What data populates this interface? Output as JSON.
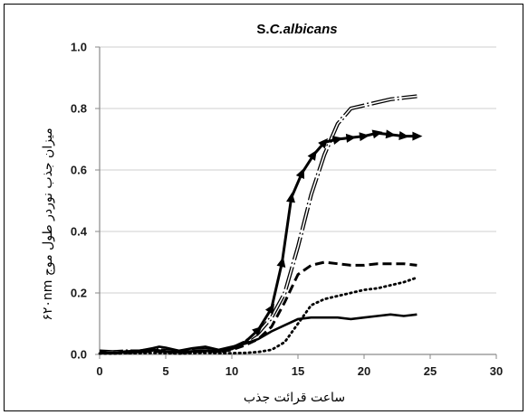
{
  "chart_data": {
    "type": "line",
    "title_prefix": "S.",
    "title_italic": "C.albicans",
    "xlabel": "ساعت قرائت جذب",
    "ylabel": "میزان جذب نوردر طول موج ۶۲۰nm",
    "xlim": [
      0,
      30
    ],
    "ylim": [
      0,
      1.0
    ],
    "xticks": [
      "0",
      "5",
      "10",
      "15",
      "20",
      "25",
      "30"
    ],
    "yticks": [
      "0.0",
      "0.2",
      "0.4",
      "0.6",
      "0.8",
      "1.0"
    ],
    "grid": "horizontal",
    "legend": "none",
    "series": [
      {
        "style": "double-dash-dot",
        "points": [
          [
            0,
            0.01
          ],
          [
            1,
            0.008
          ],
          [
            2,
            0.01
          ],
          [
            3,
            0.01
          ],
          [
            4,
            0.015
          ],
          [
            5,
            0.012
          ],
          [
            6,
            0.01
          ],
          [
            7,
            0.012
          ],
          [
            8,
            0.015
          ],
          [
            9,
            0.01
          ],
          [
            10,
            0.02
          ],
          [
            11,
            0.04
          ],
          [
            12,
            0.07
          ],
          [
            13,
            0.12
          ],
          [
            14,
            0.2
          ],
          [
            15,
            0.35
          ],
          [
            16,
            0.52
          ],
          [
            17,
            0.65
          ],
          [
            18,
            0.75
          ],
          [
            19,
            0.8
          ],
          [
            20,
            0.81
          ],
          [
            21,
            0.82
          ],
          [
            22,
            0.83
          ],
          [
            23,
            0.835
          ],
          [
            24,
            0.84
          ]
        ]
      },
      {
        "style": "solid-triangle-markers",
        "points": [
          [
            0,
            0.005
          ],
          [
            1,
            0.005
          ],
          [
            2,
            0.008
          ],
          [
            3,
            0.01
          ],
          [
            4,
            0.015
          ],
          [
            5,
            0.01
          ],
          [
            6,
            0.008
          ],
          [
            7,
            0.01
          ],
          [
            8,
            0.012
          ],
          [
            9,
            0.01
          ],
          [
            10,
            0.02
          ],
          [
            11,
            0.04
          ],
          [
            12,
            0.08
          ],
          [
            13,
            0.15
          ],
          [
            13.8,
            0.3
          ],
          [
            14.5,
            0.51
          ],
          [
            15.3,
            0.59
          ],
          [
            16.2,
            0.65
          ],
          [
            17,
            0.69
          ],
          [
            18,
            0.7
          ],
          [
            19,
            0.705
          ],
          [
            20,
            0.71
          ],
          [
            21,
            0.72
          ],
          [
            22,
            0.715
          ],
          [
            23,
            0.71
          ],
          [
            24,
            0.71
          ]
        ],
        "markers_from_index": 12
      },
      {
        "style": "dashed",
        "points": [
          [
            0,
            0.005
          ],
          [
            1,
            0.005
          ],
          [
            2,
            0.005
          ],
          [
            3,
            0.008
          ],
          [
            4,
            0.01
          ],
          [
            5,
            0.008
          ],
          [
            6,
            0.005
          ],
          [
            7,
            0.008
          ],
          [
            8,
            0.01
          ],
          [
            9,
            0.008
          ],
          [
            10,
            0.015
          ],
          [
            11,
            0.03
          ],
          [
            12,
            0.05
          ],
          [
            13,
            0.09
          ],
          [
            14,
            0.17
          ],
          [
            15,
            0.26
          ],
          [
            16,
            0.29
          ],
          [
            17,
            0.3
          ],
          [
            18,
            0.295
          ],
          [
            19,
            0.29
          ],
          [
            20,
            0.29
          ],
          [
            21,
            0.295
          ],
          [
            22,
            0.295
          ],
          [
            23,
            0.295
          ],
          [
            24,
            0.29
          ]
        ]
      },
      {
        "style": "dotted",
        "points": [
          [
            0,
            0.003
          ],
          [
            1,
            0.003
          ],
          [
            2,
            0.004
          ],
          [
            3,
            0.004
          ],
          [
            4,
            0.005
          ],
          [
            5,
            0.004
          ],
          [
            6,
            0.003
          ],
          [
            7,
            0.004
          ],
          [
            8,
            0.005
          ],
          [
            9,
            0.004
          ],
          [
            10,
            0.004
          ],
          [
            11,
            0.005
          ],
          [
            12,
            0.008
          ],
          [
            13,
            0.015
          ],
          [
            14,
            0.04
          ],
          [
            15,
            0.1
          ],
          [
            16,
            0.16
          ],
          [
            17,
            0.18
          ],
          [
            18,
            0.19
          ],
          [
            19,
            0.2
          ],
          [
            20,
            0.21
          ],
          [
            21,
            0.215
          ],
          [
            22,
            0.225
          ],
          [
            23,
            0.235
          ],
          [
            24,
            0.25
          ]
        ]
      },
      {
        "style": "solid",
        "points": [
          [
            0,
            0.01
          ],
          [
            1,
            0.005
          ],
          [
            2,
            0.01
          ],
          [
            3,
            0.012
          ],
          [
            4,
            0.02
          ],
          [
            4.5,
            0.025
          ],
          [
            5,
            0.022
          ],
          [
            6,
            0.012
          ],
          [
            7,
            0.02
          ],
          [
            8,
            0.025
          ],
          [
            9,
            0.015
          ],
          [
            10,
            0.025
          ],
          [
            11,
            0.035
          ],
          [
            12,
            0.05
          ],
          [
            13,
            0.075
          ],
          [
            14,
            0.095
          ],
          [
            15,
            0.115
          ],
          [
            16,
            0.12
          ],
          [
            17,
            0.12
          ],
          [
            18,
            0.12
          ],
          [
            19,
            0.115
          ],
          [
            20,
            0.12
          ],
          [
            21,
            0.125
          ],
          [
            22,
            0.13
          ],
          [
            23,
            0.125
          ],
          [
            24,
            0.13
          ]
        ]
      }
    ]
  }
}
